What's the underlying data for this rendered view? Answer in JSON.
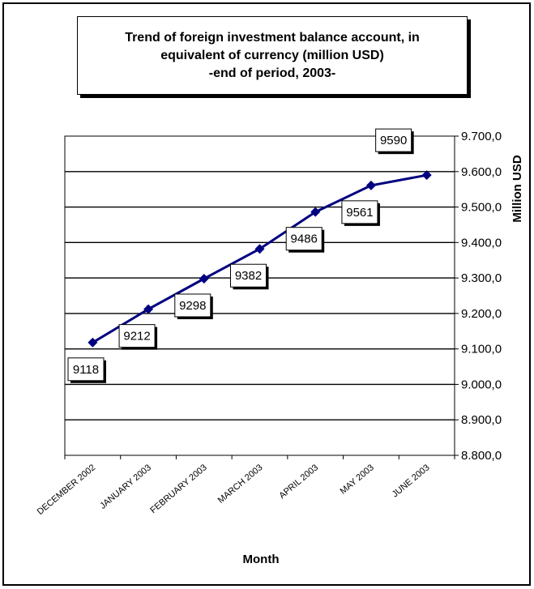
{
  "chart_data": {
    "type": "line",
    "title": [
      "Trend of foreign investment balance account, in",
      "equivalent of currency (million USD)",
      "-end of period, 2003-"
    ],
    "xlabel": "Month",
    "ylabel": "Million USD",
    "categories": [
      "DECEMBER 2002",
      "JANUARY 2003",
      "FEBRUARY 2003",
      "MARCH 2003",
      "APRIL 2003",
      "MAY 2003",
      "JUNE 2003"
    ],
    "values": [
      9118,
      9212,
      9298,
      9382,
      9486,
      9561,
      9590
    ],
    "data_labels": [
      "9118",
      "9212",
      "9298",
      "9382",
      "9486",
      "9561",
      "9590"
    ],
    "ylim": [
      8800,
      9700
    ],
    "yticks": [
      8800,
      8900,
      9000,
      9100,
      9200,
      9300,
      9400,
      9500,
      9600,
      9700
    ],
    "ytick_labels": [
      "8.800,0",
      "8.900,0",
      "9.000,0",
      "9.100,0",
      "9.200,0",
      "9.300,0",
      "9.400,0",
      "9.500,0",
      "9.600,0",
      "9.700,0"
    ],
    "y_axis_side": "right",
    "grid": true,
    "series_color": "#000080"
  }
}
